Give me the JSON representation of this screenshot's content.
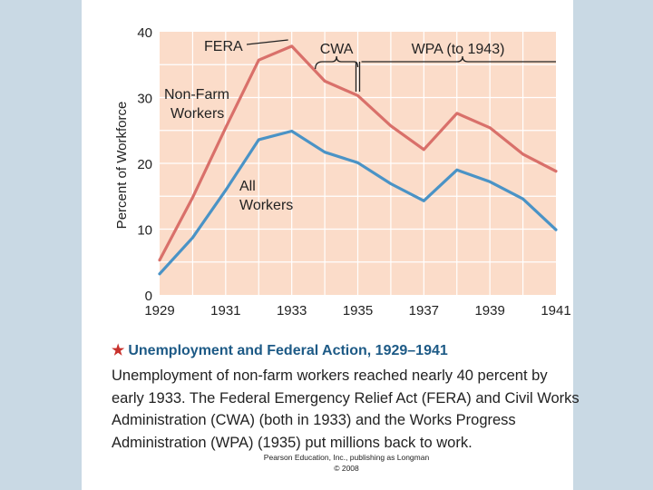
{
  "chart_data": {
    "type": "line",
    "title": "Unemployment and Federal Action, 1929–1941",
    "xlabel": "",
    "ylabel": "Percent of Workforce",
    "x": [
      1929,
      1930,
      1931,
      1932,
      1933,
      1934,
      1935,
      1936,
      1937,
      1938,
      1939,
      1940,
      1941
    ],
    "xticks": [
      "1929",
      "1931",
      "1933",
      "1935",
      "1937",
      "1939",
      "1941"
    ],
    "xtick_values": [
      1929,
      1931,
      1933,
      1935,
      1937,
      1939,
      1941
    ],
    "yticks": [
      "0",
      "10",
      "20",
      "30",
      "40"
    ],
    "ytick_values": [
      0,
      10,
      20,
      30,
      40
    ],
    "xlim": [
      1929,
      1941
    ],
    "ylim": [
      0,
      40
    ],
    "series": [
      {
        "name": "Non-Farm Workers",
        "label_lines": [
          "Non-Farm",
          "Workers"
        ],
        "color": "#d9706a",
        "values": [
          5.3,
          14.8,
          25.4,
          35.7,
          37.8,
          32.5,
          30.3,
          25.7,
          22.1,
          27.6,
          25.4,
          21.4,
          18.8
        ]
      },
      {
        "name": "All Workers",
        "label_lines": [
          "All",
          "Workers"
        ],
        "color": "#4a93c6",
        "values": [
          3.2,
          8.7,
          15.9,
          23.6,
          24.9,
          21.7,
          20.1,
          16.9,
          14.3,
          19.0,
          17.2,
          14.6,
          9.9
        ]
      }
    ],
    "annotations": [
      {
        "label": "FERA",
        "from": 1933,
        "to": 1933
      },
      {
        "label": "CWA",
        "from": 1933,
        "to": 1935
      },
      {
        "label": "WPA (to 1943)",
        "from": 1935,
        "to": 1941
      }
    ],
    "plot_background": "#fbdcc9",
    "grid_color": "#ffffff"
  },
  "caption": {
    "title": "Unemployment and Federal Action, 1929–1941",
    "body": "Unemployment of non-farm workers reached nearly 40 percent by early 1933. The Federal Emergency Relief Act (FERA) and Civil Works Administration (CWA) (both in 1933) and the Works Progress Administration (WPA) (1935) put millions back to work."
  },
  "credit": {
    "line1": "Pearson Education, Inc., publishing as Longman",
    "line2": "© 2008"
  }
}
